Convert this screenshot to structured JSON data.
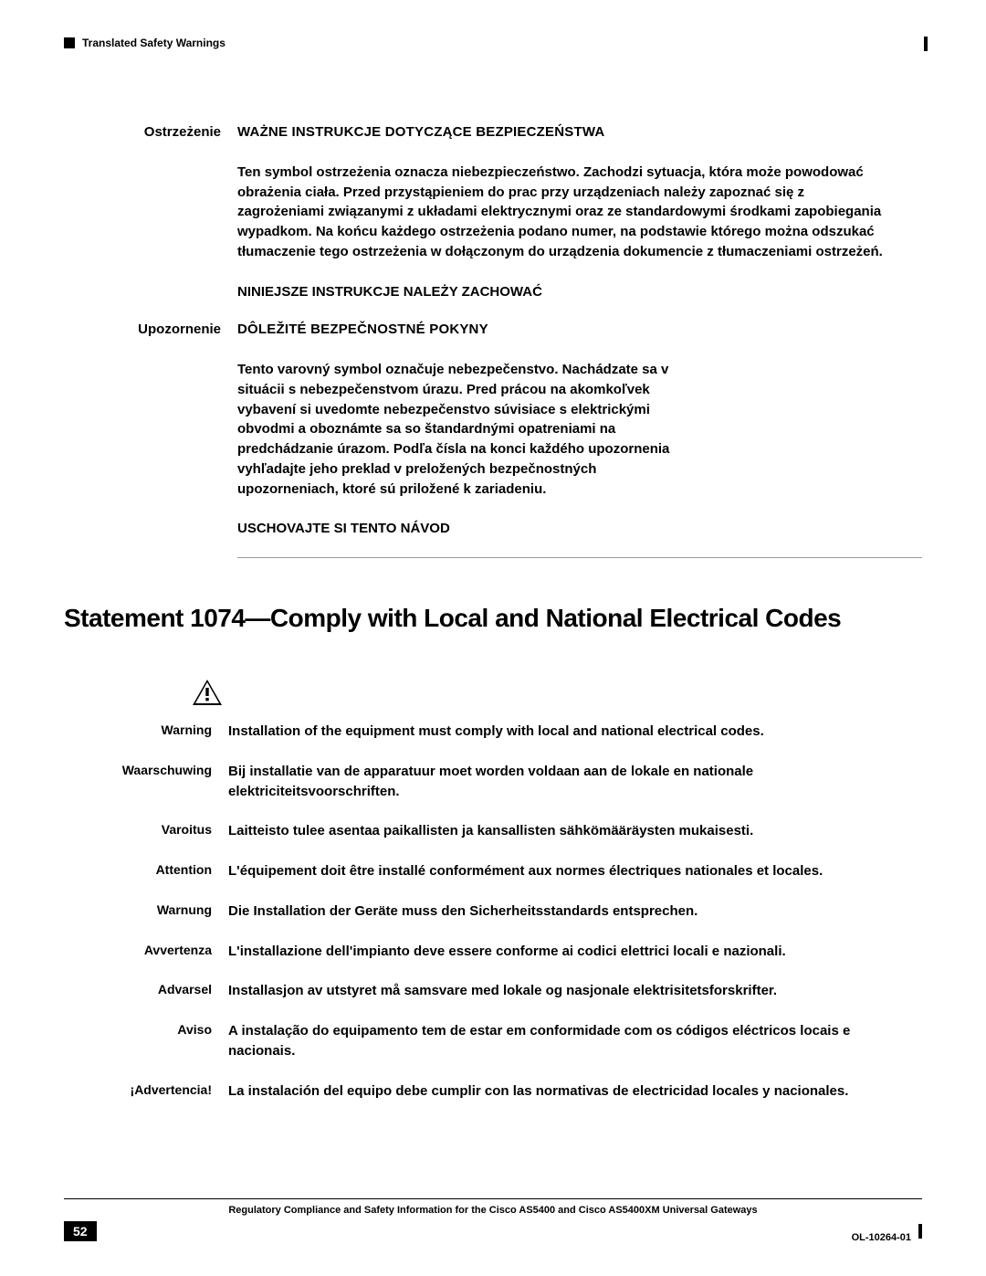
{
  "header": {
    "section_title": "Translated Safety Warnings"
  },
  "upper": [
    {
      "label": "Ostrzeżenie",
      "title": "WAŻNE INSTRUKCJE DOTYCZĄCE BEZPIECZEŃSTWA",
      "body": "Ten symbol ostrzeżenia oznacza niebezpieczeństwo. Zachodzi sytuacja, która może powodować obrażenia ciała. Przed przystąpieniem do prac przy urządzeniach należy zapoznać się z zagrożeniami związanymi z układami elektrycznymi oraz ze standardowymi środkami zapobiegania wypadkom. Na końcu każdego ostrzeżenia podano numer, na podstawie którego można odszukać tłumaczenie tego ostrzeżenia w dołączonym do urządzenia dokumencie z tłumaczeniami ostrzeżeń.",
      "save": "NINIEJSZE INSTRUKCJE NALEŻY ZACHOWAĆ"
    },
    {
      "label": "Upozornenie",
      "title": "DÔLEŽITÉ BEZPEČNOSTNÉ POKYNY",
      "body": "Tento varovný symbol označuje nebezpečenstvo. Nachádzate sa v situácii s nebezpečenstvom úrazu. Pred prácou na akomkoľvek vybavení si uvedomte nebezpečenstvo súvisiace s elektrickými obvodmi a oboznámte sa so štandardnými opatreniami na predchádzanie úrazom. Podľa čísla na konci každého upozornenia vyhľadajte jeho preklad v preložených bezpečnostných upozorneniach, ktoré sú priložené k zariadeniu.",
      "save": "USCHOVAJTE SI TENTO NÁVOD"
    }
  ],
  "statement": {
    "heading": "Statement 1074—Comply with Local and National Electrical Codes"
  },
  "warnings": [
    {
      "label": "Warning",
      "text": "Installation of the equipment must comply with local and national electrical codes."
    },
    {
      "label": "Waarschuwing",
      "text": "Bij installatie van de apparatuur moet worden voldaan aan de lokale en nationale elektriciteitsvoorschriften."
    },
    {
      "label": "Varoitus",
      "text": "Laitteisto tulee asentaa paikallisten ja kansallisten sähkömääräysten mukaisesti."
    },
    {
      "label": "Attention",
      "text": "L'équipement doit être installé conformément aux normes électriques nationales et locales."
    },
    {
      "label": "Warnung",
      "text": "Die Installation der Geräte muss den Sicherheitsstandards entsprechen."
    },
    {
      "label": "Avvertenza",
      "text": "L'installazione dell'impianto deve essere conforme ai codici elettrici locali e nazionali."
    },
    {
      "label": "Advarsel",
      "text": "Installasjon av utstyret må samsvare med lokale og nasjonale elektrisitetsforskrifter."
    },
    {
      "label": "Aviso",
      "text": "A instalação do equipamento tem de estar em conformidade com os códigos eléctricos locais e nacionais."
    },
    {
      "label": "¡Advertencia!",
      "text": "La instalación del equipo debe cumplir con las normativas de electricidad locales y nacionales."
    }
  ],
  "footer": {
    "doc_title": "Regulatory Compliance and Safety Information for the Cisco AS5400 and Cisco AS5400XM Universal Gateways",
    "page_number": "52",
    "doc_id": "OL-10264-01"
  },
  "colors": {
    "text": "#000000",
    "bg": "#ffffff",
    "rule": "#999999"
  }
}
